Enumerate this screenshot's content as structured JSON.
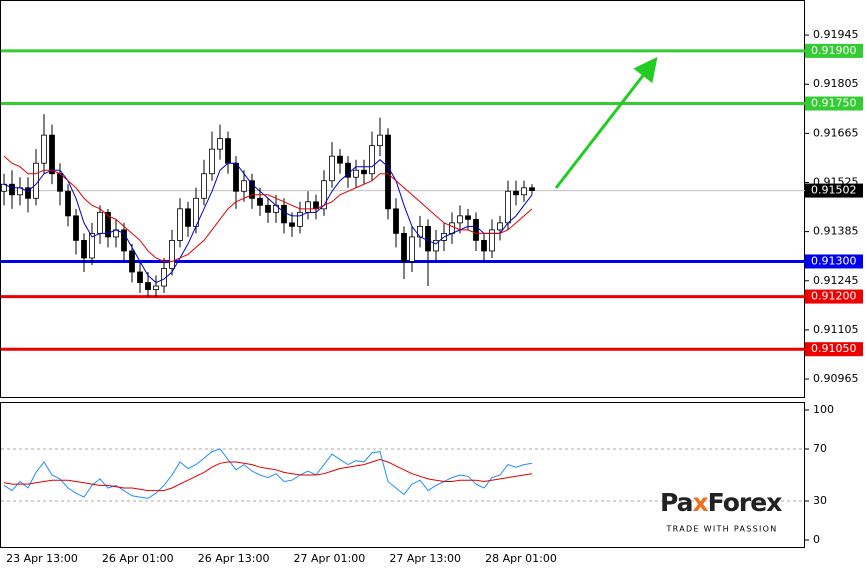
{
  "chart_data": {
    "type": "candlestick",
    "ylim": [
      0.90911,
      0.92045
    ],
    "yticks": [
      0.91945,
      0.91805,
      0.91665,
      0.91525,
      0.91385,
      0.91245,
      0.91105,
      0.90965
    ],
    "x_tick_labels": [
      "23 Apr 13:00",
      "26 Apr 01:00",
      "26 Apr 13:00",
      "27 Apr 01:00",
      "27 Apr 13:00",
      "28 Apr 01:00"
    ],
    "open": [
      0.915,
      0.9152,
      0.9149,
      0.9151,
      0.9148,
      0.9158,
      0.9166,
      0.9155,
      0.915,
      0.9143,
      0.9136,
      0.9131,
      0.9138,
      0.9144,
      0.9137,
      0.9139,
      0.9133,
      0.9127,
      0.9124,
      0.9122,
      0.9123,
      0.9128,
      0.9136,
      0.9145,
      0.914,
      0.9148,
      0.9155,
      0.9162,
      0.9165,
      0.9158,
      0.915,
      0.9153,
      0.9148,
      0.9146,
      0.9144,
      0.9146,
      0.9141,
      0.914,
      0.9144,
      0.9147,
      0.9145,
      0.9153,
      0.916,
      0.9158,
      0.9154,
      0.9156,
      0.9155,
      0.9163,
      0.9166,
      0.9145,
      0.9138,
      0.913,
      0.9137,
      0.914,
      0.9133,
      0.9136,
      0.9138,
      0.9141,
      0.9143,
      0.9142,
      0.9136,
      0.9133,
      0.9139,
      0.9141,
      0.915,
      0.9149,
      0.9151
    ],
    "high": [
      0.9155,
      0.9156,
      0.9154,
      0.9154,
      0.9162,
      0.9172,
      0.9169,
      0.9158,
      0.9152,
      0.9145,
      0.9138,
      0.9141,
      0.9146,
      0.9145,
      0.9142,
      0.9141,
      0.9135,
      0.913,
      0.9127,
      0.9126,
      0.9131,
      0.9139,
      0.9148,
      0.9147,
      0.9151,
      0.9159,
      0.9167,
      0.9169,
      0.9167,
      0.916,
      0.9156,
      0.9155,
      0.9151,
      0.9148,
      0.9149,
      0.9148,
      0.9144,
      0.9147,
      0.915,
      0.9149,
      0.9156,
      0.9164,
      0.9162,
      0.916,
      0.9159,
      0.9159,
      0.9167,
      0.9171,
      0.9168,
      0.9148,
      0.914,
      0.914,
      0.9143,
      0.9142,
      0.9139,
      0.9141,
      0.9144,
      0.9146,
      0.9145,
      0.9144,
      0.9138,
      0.9142,
      0.9143,
      0.9153,
      0.9153,
      0.9153,
      0.9152
    ],
    "low": [
      0.9146,
      0.9145,
      0.9146,
      0.9144,
      0.9146,
      0.9155,
      0.9152,
      0.9146,
      0.914,
      0.9132,
      0.9127,
      0.9129,
      0.9135,
      0.9134,
      0.9134,
      0.913,
      0.9124,
      0.9121,
      0.912,
      0.912,
      0.9121,
      0.9126,
      0.9134,
      0.9137,
      0.9138,
      0.9146,
      0.9153,
      0.9159,
      0.9155,
      0.9145,
      0.9147,
      0.9145,
      0.9143,
      0.9141,
      0.9141,
      0.9138,
      0.9137,
      0.9138,
      0.9142,
      0.9142,
      0.9143,
      0.9151,
      0.9155,
      0.9151,
      0.9151,
      0.9152,
      0.9153,
      0.916,
      0.9142,
      0.9134,
      0.9125,
      0.9127,
      0.9134,
      0.9123,
      0.913,
      0.9133,
      0.9135,
      0.9138,
      0.9139,
      0.9133,
      0.913,
      0.9131,
      0.9136,
      0.9139,
      0.9146,
      0.9147,
      0.9149
    ],
    "close": [
      0.9152,
      0.9149,
      0.9151,
      0.9148,
      0.9158,
      0.9166,
      0.9155,
      0.915,
      0.9143,
      0.9136,
      0.9131,
      0.9138,
      0.9144,
      0.9137,
      0.9139,
      0.9133,
      0.9127,
      0.9124,
      0.9122,
      0.9123,
      0.9128,
      0.9136,
      0.9145,
      0.914,
      0.9148,
      0.9155,
      0.9162,
      0.9165,
      0.9158,
      0.915,
      0.9153,
      0.9148,
      0.9146,
      0.9144,
      0.9146,
      0.9141,
      0.914,
      0.9144,
      0.9147,
      0.9145,
      0.9153,
      0.916,
      0.9158,
      0.9154,
      0.9156,
      0.9155,
      0.9163,
      0.9166,
      0.9145,
      0.9138,
      0.913,
      0.9137,
      0.914,
      0.9133,
      0.9136,
      0.9138,
      0.9141,
      0.9143,
      0.9142,
      0.9136,
      0.9133,
      0.9139,
      0.9141,
      0.915,
      0.9149,
      0.9151,
      0.91502
    ],
    "up_color": "#ffffff",
    "down_color": "#000000",
    "series": [
      {
        "color": "#0000cc",
        "values": [
          0.9152,
          0.9151,
          0.9151,
          0.915,
          0.9152,
          0.9155,
          0.9156,
          0.9156,
          0.9153,
          0.9148,
          0.9141,
          0.9137,
          0.9138,
          0.9138,
          0.9139,
          0.9138,
          0.9134,
          0.913,
          0.9126,
          0.9124,
          0.9125,
          0.9127,
          0.9131,
          0.9135,
          0.914,
          0.9145,
          0.915,
          0.9156,
          0.9158,
          0.9158,
          0.9155,
          0.9152,
          0.915,
          0.9148,
          0.9146,
          0.9144,
          0.9143,
          0.9143,
          0.9144,
          0.9144,
          0.9146,
          0.915,
          0.9153,
          0.9155,
          0.9157,
          0.9157,
          0.9157,
          0.9159,
          0.9157,
          0.9153,
          0.9146,
          0.914,
          0.9137,
          0.9136,
          0.9135,
          0.9137,
          0.9138,
          0.9139,
          0.914,
          0.914,
          0.9138,
          0.9138,
          0.9138,
          0.9141,
          0.9143,
          0.9146,
          0.9149
        ]
      },
      {
        "color": "#e00000",
        "values": [
          0.916,
          0.9158,
          0.9157,
          0.9155,
          0.9155,
          0.9156,
          0.9156,
          0.9155,
          0.9153,
          0.9151,
          0.9148,
          0.9146,
          0.9145,
          0.9143,
          0.9142,
          0.914,
          0.9138,
          0.9136,
          0.9133,
          0.9131,
          0.913,
          0.913,
          0.9131,
          0.9132,
          0.9134,
          0.9136,
          0.9139,
          0.9142,
          0.9145,
          0.9147,
          0.9148,
          0.9149,
          0.9149,
          0.9149,
          0.9148,
          0.9147,
          0.9146,
          0.9145,
          0.9145,
          0.9145,
          0.9146,
          0.9147,
          0.9149,
          0.915,
          0.9151,
          0.9152,
          0.9153,
          0.9155,
          0.9155,
          0.9153,
          0.9151,
          0.9149,
          0.9147,
          0.9145,
          0.9143,
          0.9141,
          0.914,
          0.9139,
          0.9139,
          0.9138,
          0.9138,
          0.9138,
          0.9138,
          0.9139,
          0.9141,
          0.9143,
          0.9145
        ]
      }
    ],
    "levels": [
      {
        "value": 0.919,
        "label": "0.91900",
        "color": "#33cc33"
      },
      {
        "value": 0.9175,
        "label": "0.91750",
        "color": "#33cc33"
      },
      {
        "value": 0.913,
        "label": "0.91300",
        "color": "#0000ee"
      },
      {
        "value": 0.912,
        "label": "0.91200",
        "color": "#ee0000"
      },
      {
        "value": 0.9105,
        "label": "0.91050",
        "color": "#ee0000"
      }
    ],
    "current_price": {
      "value": 0.91502,
      "label": "0.91502"
    },
    "rsi": {
      "ylim": [
        0,
        100
      ],
      "yticks": [
        100,
        70,
        30,
        0
      ],
      "dashed_levels": [
        70,
        30
      ],
      "series": [
        {
          "color": "#1e90ff",
          "values": [
            42,
            38,
            45,
            40,
            52,
            60,
            50,
            47,
            40,
            36,
            33,
            42,
            47,
            40,
            42,
            38,
            34,
            33,
            32,
            36,
            42,
            50,
            60,
            55,
            58,
            63,
            68,
            70,
            62,
            54,
            58,
            53,
            50,
            48,
            51,
            45,
            46,
            50,
            53,
            50,
            58,
            66,
            62,
            58,
            61,
            60,
            67,
            68,
            45,
            40,
            35,
            43,
            46,
            38,
            42,
            45,
            48,
            50,
            49,
            43,
            40,
            48,
            50,
            58,
            56,
            58,
            59
          ]
        },
        {
          "color": "#e00000",
          "values": [
            44,
            43,
            43,
            43,
            44,
            45,
            46,
            46,
            46,
            45,
            44,
            43,
            42,
            42,
            41,
            40,
            40,
            39,
            38,
            38,
            38,
            40,
            43,
            46,
            49,
            52,
            56,
            59,
            60,
            60,
            59,
            58,
            56,
            55,
            54,
            52,
            51,
            50,
            50,
            50,
            51,
            53,
            55,
            56,
            57,
            58,
            60,
            62,
            60,
            57,
            54,
            51,
            49,
            47,
            46,
            45,
            45,
            46,
            46,
            46,
            45,
            46,
            47,
            48,
            49,
            50,
            51
          ]
        }
      ]
    }
  },
  "logo": {
    "parts": [
      "Pa",
      "x",
      "Forex"
    ],
    "tagline": "TRADE WITH PASSION"
  }
}
